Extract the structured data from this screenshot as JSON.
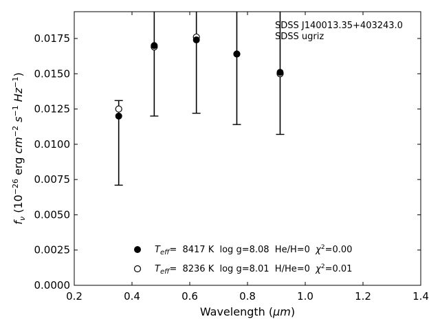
{
  "chart_data": {
    "type": "scatter",
    "xlabel_main": "Wavelength (",
    "xlabel_unit": "μm",
    "xlabel_close": ")",
    "ylabel": {
      "f": "f",
      "nu": "ν",
      "open": " (10",
      "exp26": "−26",
      "erg": " erg ",
      "cm": "cm",
      "expcm": "−2",
      "s": " s",
      "exps": "−1",
      "hz": " Hz",
      "exphz": "−1",
      "close": ")"
    },
    "xlim": [
      0.2,
      1.4
    ],
    "ylim": [
      0.0,
      0.0194
    ],
    "xticks": [
      0.2,
      0.4,
      0.6,
      0.8,
      1.0,
      1.2,
      1.4
    ],
    "xtick_labels": [
      "0.2",
      "0.4",
      "0.6",
      "0.8",
      "1.0",
      "1.2",
      "1.4"
    ],
    "yticks": [
      0.0,
      0.0025,
      0.005,
      0.0075,
      0.01,
      0.0125,
      0.015,
      0.0175
    ],
    "ytick_labels": [
      "0.0000",
      "0.0025",
      "0.0050",
      "0.0075",
      "0.0100",
      "0.0125",
      "0.0150",
      "0.0175"
    ],
    "annotation": [
      "SDSS J140013.35+403243.0",
      "SDSS ugriz"
    ],
    "observed": [
      {
        "x": 0.354,
        "y": 0.0125,
        "lo": 0.0071,
        "hi": 0.0131
      },
      {
        "x": 0.477,
        "y": 0.0169,
        "lo": 0.012,
        "hi": 0.0194
      },
      {
        "x": 0.623,
        "y": 0.0176,
        "lo": 0.0122,
        "hi": 0.0194
      },
      {
        "x": 0.763,
        "y": 0.0164,
        "lo": 0.0114,
        "hi": 0.0194
      },
      {
        "x": 0.913,
        "y": 0.015,
        "lo": 0.0107,
        "hi": 0.0194
      }
    ],
    "series": [
      {
        "marker": "filled",
        "values": [
          {
            "x": 0.354,
            "y": 0.012
          },
          {
            "x": 0.477,
            "y": 0.017
          },
          {
            "x": 0.623,
            "y": 0.0174
          },
          {
            "x": 0.763,
            "y": 0.0164
          },
          {
            "x": 0.913,
            "y": 0.0151
          }
        ],
        "legend": {
          "teff": "T",
          "teff_sub": "eff",
          "rest": "=  8417 K  log g=8.08  He/H=0  ",
          "chi": "χ",
          "chi_exp": "2",
          "chi_val": "=0.00"
        }
      },
      {
        "marker": "open",
        "values": [
          {
            "x": 0.354,
            "y": 0.0125
          },
          {
            "x": 0.477,
            "y": 0.0169
          },
          {
            "x": 0.623,
            "y": 0.0176
          },
          {
            "x": 0.763,
            "y": 0.0164
          },
          {
            "x": 0.913,
            "y": 0.015
          }
        ],
        "legend": {
          "teff": "T",
          "teff_sub": "eff",
          "rest": "=  8236 K  log g=8.01  H/He=0  ",
          "chi": "χ",
          "chi_exp": "2",
          "chi_val": "=0.01"
        }
      }
    ],
    "legend_position": "lower-center",
    "grid": false,
    "colors": {
      "marker": "#000000",
      "axes": "#000000"
    }
  }
}
